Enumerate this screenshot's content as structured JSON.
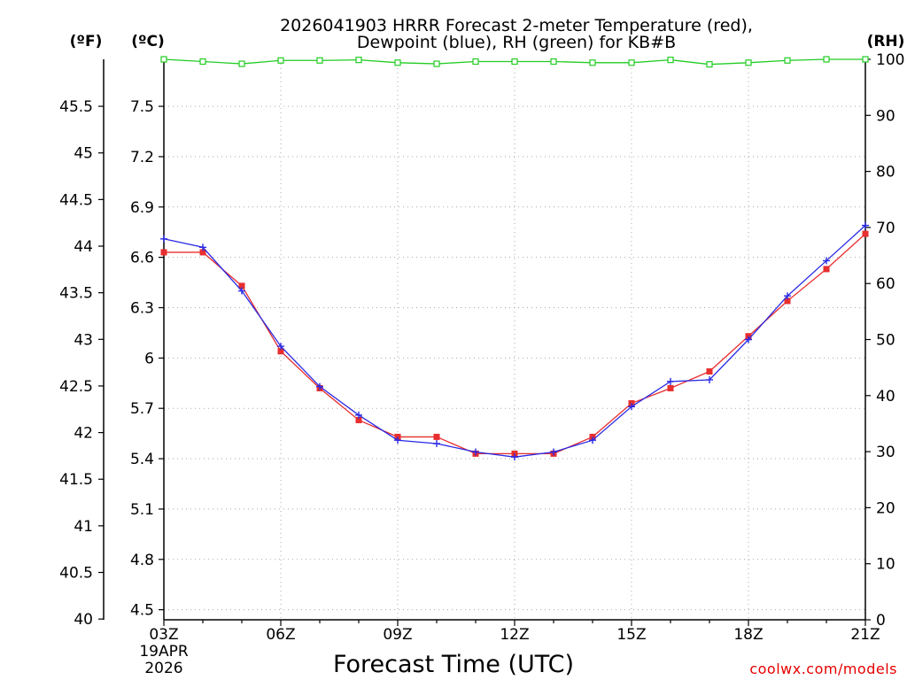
{
  "chart_data": {
    "type": "line",
    "title": "2026041903 HRRR Forecast 2-meter Temperature (red),",
    "subtitle": "Dewpoint (blue), RH (green) for KB#B",
    "xlabel": "Forecast Time (UTC)",
    "credit": "coolwx.com/models",
    "date_label": {
      "line1": "19APR",
      "line2": "2026"
    },
    "unit_labels": {
      "fahrenheit": "(ºF)",
      "celsius": "(ºC)",
      "rh": "(RH)"
    },
    "x_hours": [
      3,
      4,
      5,
      6,
      7,
      8,
      9,
      10,
      11,
      12,
      13,
      14,
      15,
      16,
      17,
      18,
      19,
      20,
      21
    ],
    "x_ticks": [
      {
        "hour": 3,
        "label": "03Z"
      },
      {
        "hour": 6,
        "label": "06Z"
      },
      {
        "hour": 9,
        "label": "09Z"
      },
      {
        "hour": 12,
        "label": "12Z"
      },
      {
        "hour": 15,
        "label": "15Z"
      },
      {
        "hour": 18,
        "label": "18Z"
      },
      {
        "hour": 21,
        "label": "21Z"
      }
    ],
    "xlim": [
      3,
      21
    ],
    "ylim_celsius": [
      4.44,
      7.78
    ],
    "ylim_rh": [
      0,
      100
    ],
    "y_ticks_celsius": [
      "4.5",
      "4.8",
      "5.1",
      "5.4",
      "5.7",
      "6",
      "6.3",
      "6.6",
      "6.9",
      "7.2",
      "7.5"
    ],
    "y_ticks_fahrenheit": [
      "40",
      "40.5",
      "41",
      "41.5",
      "42",
      "42.5",
      "43",
      "43.5",
      "44",
      "44.5",
      "45",
      "45.5"
    ],
    "y_ticks_rh": [
      "0",
      "10",
      "20",
      "30",
      "40",
      "50",
      "60",
      "70",
      "80",
      "90",
      "100"
    ],
    "series": [
      {
        "name": "Temperature",
        "color": "#e82e2e",
        "marker": "square",
        "axis": "celsius",
        "values": [
          6.63,
          6.63,
          6.43,
          6.04,
          5.82,
          5.63,
          5.53,
          5.53,
          5.43,
          5.43,
          5.43,
          5.53,
          5.73,
          5.82,
          5.92,
          6.13,
          6.34,
          6.53,
          6.74
        ]
      },
      {
        "name": "Dewpoint",
        "color": "#2a2ae6",
        "marker": "plus",
        "axis": "celsius",
        "values": [
          6.71,
          6.66,
          6.4,
          6.07,
          5.83,
          5.66,
          5.51,
          5.49,
          5.44,
          5.41,
          5.44,
          5.51,
          5.71,
          5.86,
          5.87,
          6.11,
          6.37,
          6.58,
          6.79
        ]
      },
      {
        "name": "RH",
        "color": "#22cc22",
        "marker": "square-open",
        "axis": "rh",
        "values": [
          100,
          99.6,
          99.2,
          99.8,
          99.8,
          99.9,
          99.4,
          99.2,
          99.6,
          99.6,
          99.6,
          99.4,
          99.4,
          99.9,
          99.1,
          99.4,
          99.8,
          100,
          100
        ]
      }
    ]
  }
}
